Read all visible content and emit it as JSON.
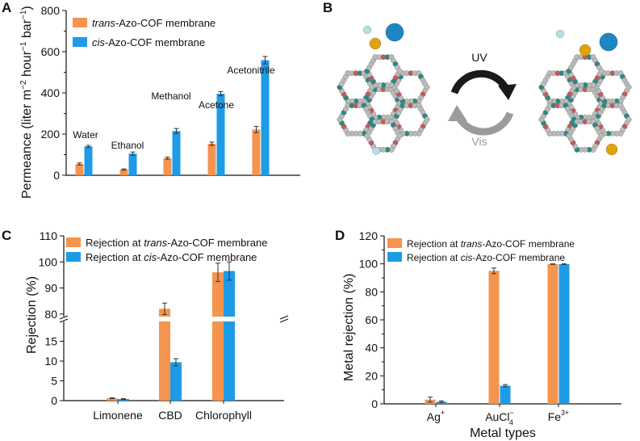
{
  "colors": {
    "trans": "#F4944E",
    "cis": "#1E9BE6",
    "axis": "#111111",
    "uv_arrow": "#1a1a1a",
    "vis_arrow": "#9b9b9b",
    "ion_small": "#b9dde5",
    "ion_gold": "#e0a400",
    "ion_blue": "#1f86c4"
  },
  "panels": {
    "A": {
      "letter": "A"
    },
    "B": {
      "letter": "B",
      "uv_label": "UV",
      "vis_label": "Vis"
    },
    "C": {
      "letter": "C"
    },
    "D": {
      "letter": "D"
    }
  },
  "chart_data": [
    {
      "panel": "A",
      "type": "bar",
      "categories": [
        "Water",
        "Ethanol",
        "Methanol",
        "Acetone",
        "Acetonitrile"
      ],
      "series": [
        {
          "name_italic": "trans",
          "name_rest": "-Azo-COF membrane",
          "color": "#F4944E",
          "values": [
            55,
            28,
            83,
            153,
            222
          ],
          "errors": [
            5,
            3,
            5,
            8,
            15
          ]
        },
        {
          "name_italic": "cis",
          "name_rest": "-Azo-COF membrane",
          "color": "#1E9BE6",
          "values": [
            140,
            105,
            215,
            396,
            559
          ],
          "errors": [
            5,
            8,
            12,
            10,
            18
          ]
        }
      ],
      "ylabel_main": "Permeance (liter m",
      "ylabel_sup1": "−2",
      "ylabel_mid1": " hour",
      "ylabel_sup2": "−1",
      "ylabel_mid2": " bar",
      "ylabel_sup3": "−1",
      "ylabel_end": ")",
      "ylim": [
        0,
        800
      ],
      "yticks": [
        "0",
        "200",
        "400",
        "600",
        "800"
      ],
      "legend_position": "top-left"
    },
    {
      "panel": "C",
      "type": "bar",
      "categories": [
        "Limonene",
        "CBD",
        "Chlorophyll"
      ],
      "series": [
        {
          "name_prefix": "Rejection at ",
          "name_italic": "trans",
          "name_rest": "-Azo-COF membrane",
          "color": "#F4944E",
          "values": [
            0.6,
            82,
            96
          ],
          "errors": [
            0.1,
            2.2,
            3.5
          ]
        },
        {
          "name_prefix": "Rejection at ",
          "name_italic": "cis",
          "name_rest": "-Azo-COF membrane",
          "color": "#1E9BE6",
          "values": [
            0.4,
            9.7,
            96.5
          ],
          "errors": [
            0.1,
            0.9,
            3.5
          ]
        }
      ],
      "ylabel": "Rejection (%)",
      "broken_axis": {
        "lower": [
          0,
          20
        ],
        "upper": [
          79,
          110
        ]
      },
      "yticks_lower": [
        "0",
        "5",
        "10",
        "15"
      ],
      "yticks_upper": [
        "80",
        "90",
        "100",
        "110"
      ],
      "legend_position": "top"
    },
    {
      "panel": "D",
      "type": "bar",
      "categories": [
        {
          "base": "Ag",
          "sup": "+",
          "sub": ""
        },
        {
          "base": "AuCl",
          "sup": "−",
          "sub": "4"
        },
        {
          "base": "Fe",
          "sup": "3+",
          "sub": ""
        }
      ],
      "series": [
        {
          "name_prefix": "Rejection at ",
          "name_italic": "trans",
          "name_rest": "-Azo-COF membrane",
          "color": "#F4944E",
          "values": [
            3,
            95,
            99.8
          ],
          "errors": [
            1.8,
            2,
            0.2
          ]
        },
        {
          "name_prefix": "Rejection at ",
          "name_italic": "cis",
          "name_rest": "-Azo-COF membrane",
          "color": "#1E9BE6",
          "values": [
            1.5,
            13,
            99.8
          ],
          "errors": [
            0.6,
            0.8,
            0.2
          ]
        }
      ],
      "xlabel": "Metal types",
      "ylabel": "Metal rejection (%)",
      "ylim": [
        0,
        120
      ],
      "yticks": [
        "0",
        "20",
        "40",
        "60",
        "80",
        "100",
        "120"
      ],
      "legend_position": "top-left"
    }
  ]
}
